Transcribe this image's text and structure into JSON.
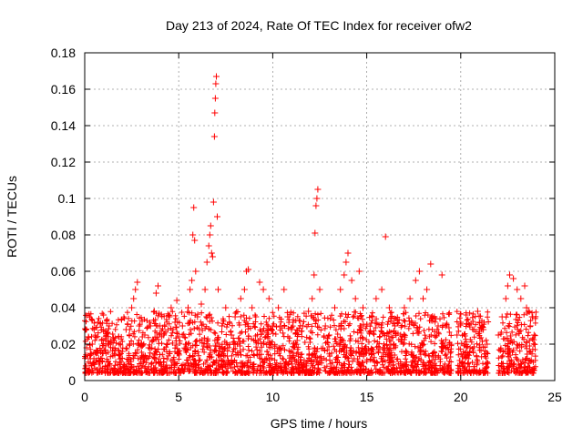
{
  "chart_data": {
    "type": "scatter",
    "title": "Day 213 of 2024, Rate Of TEC Index for receiver ofw2",
    "xlabel": "GPS time / hours",
    "ylabel": "ROTI / TECUs",
    "xlim": [
      0,
      25
    ],
    "ylim": [
      0,
      0.18
    ],
    "xticks": [
      0,
      5,
      10,
      15,
      20,
      25
    ],
    "yticks": [
      0,
      0.02,
      0.04,
      0.06,
      0.08,
      0.1,
      0.12,
      0.14,
      0.16,
      0.18
    ],
    "xtick_labels": [
      "0",
      "5",
      "10",
      "15",
      "20",
      "25"
    ],
    "ytick_labels": [
      "0",
      "0.02",
      "0.04",
      "0.06",
      "0.08",
      "0.1",
      "0.12",
      "0.14",
      "0.16",
      "0.18"
    ],
    "grid": true,
    "legend": "none",
    "marker": "plus",
    "color": "#ff0000",
    "series": [
      {
        "points": [
          [
            0.1,
            0.018
          ],
          [
            0.2,
            0.024
          ],
          [
            0.3,
            0.012
          ],
          [
            0.4,
            0.02
          ],
          [
            0.5,
            0.028
          ],
          [
            0.6,
            0.015
          ],
          [
            0.7,
            0.032
          ],
          [
            0.8,
            0.01
          ],
          [
            0.9,
            0.022
          ],
          [
            1.0,
            0.036
          ],
          [
            1.1,
            0.008
          ],
          [
            1.2,
            0.026
          ],
          [
            1.3,
            0.03
          ],
          [
            1.5,
            0.018
          ],
          [
            1.6,
            0.014
          ],
          [
            1.8,
            0.024
          ],
          [
            2.0,
            0.016
          ],
          [
            2.2,
            0.028
          ],
          [
            2.4,
            0.02
          ],
          [
            2.5,
            0.04
          ],
          [
            2.6,
            0.045
          ],
          [
            2.7,
            0.05
          ],
          [
            2.8,
            0.054
          ],
          [
            2.9,
            0.03
          ],
          [
            3.0,
            0.02
          ],
          [
            3.2,
            0.025
          ],
          [
            3.4,
            0.018
          ],
          [
            3.5,
            0.03
          ],
          [
            3.6,
            0.022
          ],
          [
            3.7,
            0.038
          ],
          [
            3.8,
            0.048
          ],
          [
            3.9,
            0.052
          ],
          [
            4.0,
            0.03
          ],
          [
            4.2,
            0.025
          ],
          [
            4.4,
            0.02
          ],
          [
            4.5,
            0.035
          ],
          [
            4.6,
            0.04
          ],
          [
            4.7,
            0.028
          ],
          [
            4.8,
            0.032
          ],
          [
            4.9,
            0.044
          ],
          [
            5.0,
            0.024
          ],
          [
            5.2,
            0.03
          ],
          [
            5.4,
            0.02
          ],
          [
            5.5,
            0.04
          ],
          [
            5.6,
            0.05
          ],
          [
            5.7,
            0.055
          ],
          [
            5.75,
            0.08
          ],
          [
            5.8,
            0.095
          ],
          [
            5.85,
            0.077
          ],
          [
            5.9,
            0.06
          ],
          [
            6.0,
            0.035
          ],
          [
            6.2,
            0.042
          ],
          [
            6.4,
            0.05
          ],
          [
            6.5,
            0.065
          ],
          [
            6.6,
            0.074
          ],
          [
            6.65,
            0.08
          ],
          [
            6.7,
            0.085
          ],
          [
            6.75,
            0.07
          ],
          [
            6.8,
            0.068
          ],
          [
            6.85,
            0.098
          ],
          [
            6.9,
            0.134
          ],
          [
            6.92,
            0.147
          ],
          [
            6.95,
            0.155
          ],
          [
            6.97,
            0.163
          ],
          [
            7.0,
            0.167
          ],
          [
            7.05,
            0.09
          ],
          [
            7.1,
            0.05
          ],
          [
            7.3,
            0.03
          ],
          [
            7.5,
            0.04
          ],
          [
            7.8,
            0.025
          ],
          [
            8.0,
            0.035
          ],
          [
            8.3,
            0.045
          ],
          [
            8.5,
            0.05
          ],
          [
            8.6,
            0.06
          ],
          [
            8.7,
            0.061
          ],
          [
            8.9,
            0.04
          ],
          [
            9.1,
            0.035
          ],
          [
            9.3,
            0.054
          ],
          [
            9.5,
            0.05
          ],
          [
            9.8,
            0.045
          ],
          [
            10.0,
            0.03
          ],
          [
            10.3,
            0.04
          ],
          [
            10.6,
            0.05
          ],
          [
            10.8,
            0.035
          ],
          [
            11.0,
            0.028
          ],
          [
            11.3,
            0.022
          ],
          [
            11.6,
            0.03
          ],
          [
            11.9,
            0.038
          ],
          [
            12.1,
            0.045
          ],
          [
            12.2,
            0.058
          ],
          [
            12.25,
            0.081
          ],
          [
            12.3,
            0.096
          ],
          [
            12.35,
            0.1
          ],
          [
            12.4,
            0.105
          ],
          [
            12.5,
            0.05
          ],
          [
            12.8,
            0.03
          ],
          [
            13.0,
            0.025
          ],
          [
            13.3,
            0.04
          ],
          [
            13.6,
            0.05
          ],
          [
            13.8,
            0.058
          ],
          [
            13.9,
            0.065
          ],
          [
            14.0,
            0.07
          ],
          [
            14.2,
            0.055
          ],
          [
            14.4,
            0.045
          ],
          [
            14.6,
            0.06
          ],
          [
            14.8,
            0.04
          ],
          [
            15.0,
            0.03
          ],
          [
            15.3,
            0.035
          ],
          [
            15.5,
            0.045
          ],
          [
            15.8,
            0.05
          ],
          [
            16.0,
            0.079
          ],
          [
            16.2,
            0.04
          ],
          [
            16.5,
            0.03
          ],
          [
            16.8,
            0.025
          ],
          [
            17.0,
            0.04
          ],
          [
            17.3,
            0.045
          ],
          [
            17.6,
            0.055
          ],
          [
            17.8,
            0.06
          ],
          [
            18.0,
            0.045
          ],
          [
            18.2,
            0.05
          ],
          [
            18.4,
            0.064
          ],
          [
            18.6,
            0.035
          ],
          [
            18.8,
            0.03
          ],
          [
            19.0,
            0.058
          ],
          [
            19.2,
            0.03
          ],
          [
            19.4,
            0.02
          ],
          [
            19.8,
            0.025
          ],
          [
            20.0,
            0.032
          ],
          [
            20.2,
            0.02
          ],
          [
            20.5,
            0.018
          ],
          [
            20.7,
            0.028
          ],
          [
            20.9,
            0.038
          ],
          [
            21.0,
            0.032
          ],
          [
            21.2,
            0.028
          ],
          [
            21.4,
            0.02
          ],
          [
            22.0,
            0.025
          ],
          [
            22.2,
            0.035
          ],
          [
            22.4,
            0.045
          ],
          [
            22.5,
            0.052
          ],
          [
            22.6,
            0.058
          ],
          [
            22.8,
            0.056
          ],
          [
            23.0,
            0.05
          ],
          [
            23.2,
            0.045
          ],
          [
            23.4,
            0.052
          ],
          [
            23.5,
            0.04
          ],
          [
            23.6,
            0.038
          ],
          [
            23.7,
            0.03
          ],
          [
            23.8,
            0.035
          ],
          [
            23.9,
            0.025
          ]
        ]
      }
    ]
  }
}
